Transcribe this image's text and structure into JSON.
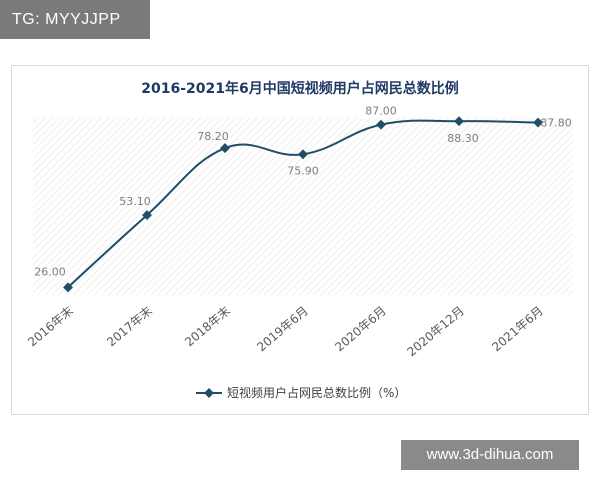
{
  "watermarks": {
    "top": "TG: MYYJJPP",
    "bottom": "www.3d-dihua.com"
  },
  "chart_data": {
    "type": "line",
    "title": "2016-2021年6月中国短视频用户占网民总数比例",
    "xlabel": "",
    "ylabel": "",
    "categories": [
      "2016年末",
      "2017年末",
      "2018年末",
      "2019年6月",
      "2020年6月",
      "2020年12月",
      "2021年6月"
    ],
    "series": [
      {
        "name": "短视频用户占网民总数比例（%）",
        "values": [
          26.0,
          53.1,
          78.2,
          75.9,
          87.0,
          88.3,
          87.8
        ],
        "labels": [
          "26.00",
          "53.10",
          "78.20",
          "75.90",
          "87.00",
          "88.30",
          "87.80"
        ]
      }
    ],
    "ylim": [
      10,
      100
    ],
    "grid": "hatched-background",
    "legend": "bottom",
    "colors": {
      "line": "#1f4e66",
      "title": "#1f3864",
      "label": "#7f7f7f"
    }
  }
}
